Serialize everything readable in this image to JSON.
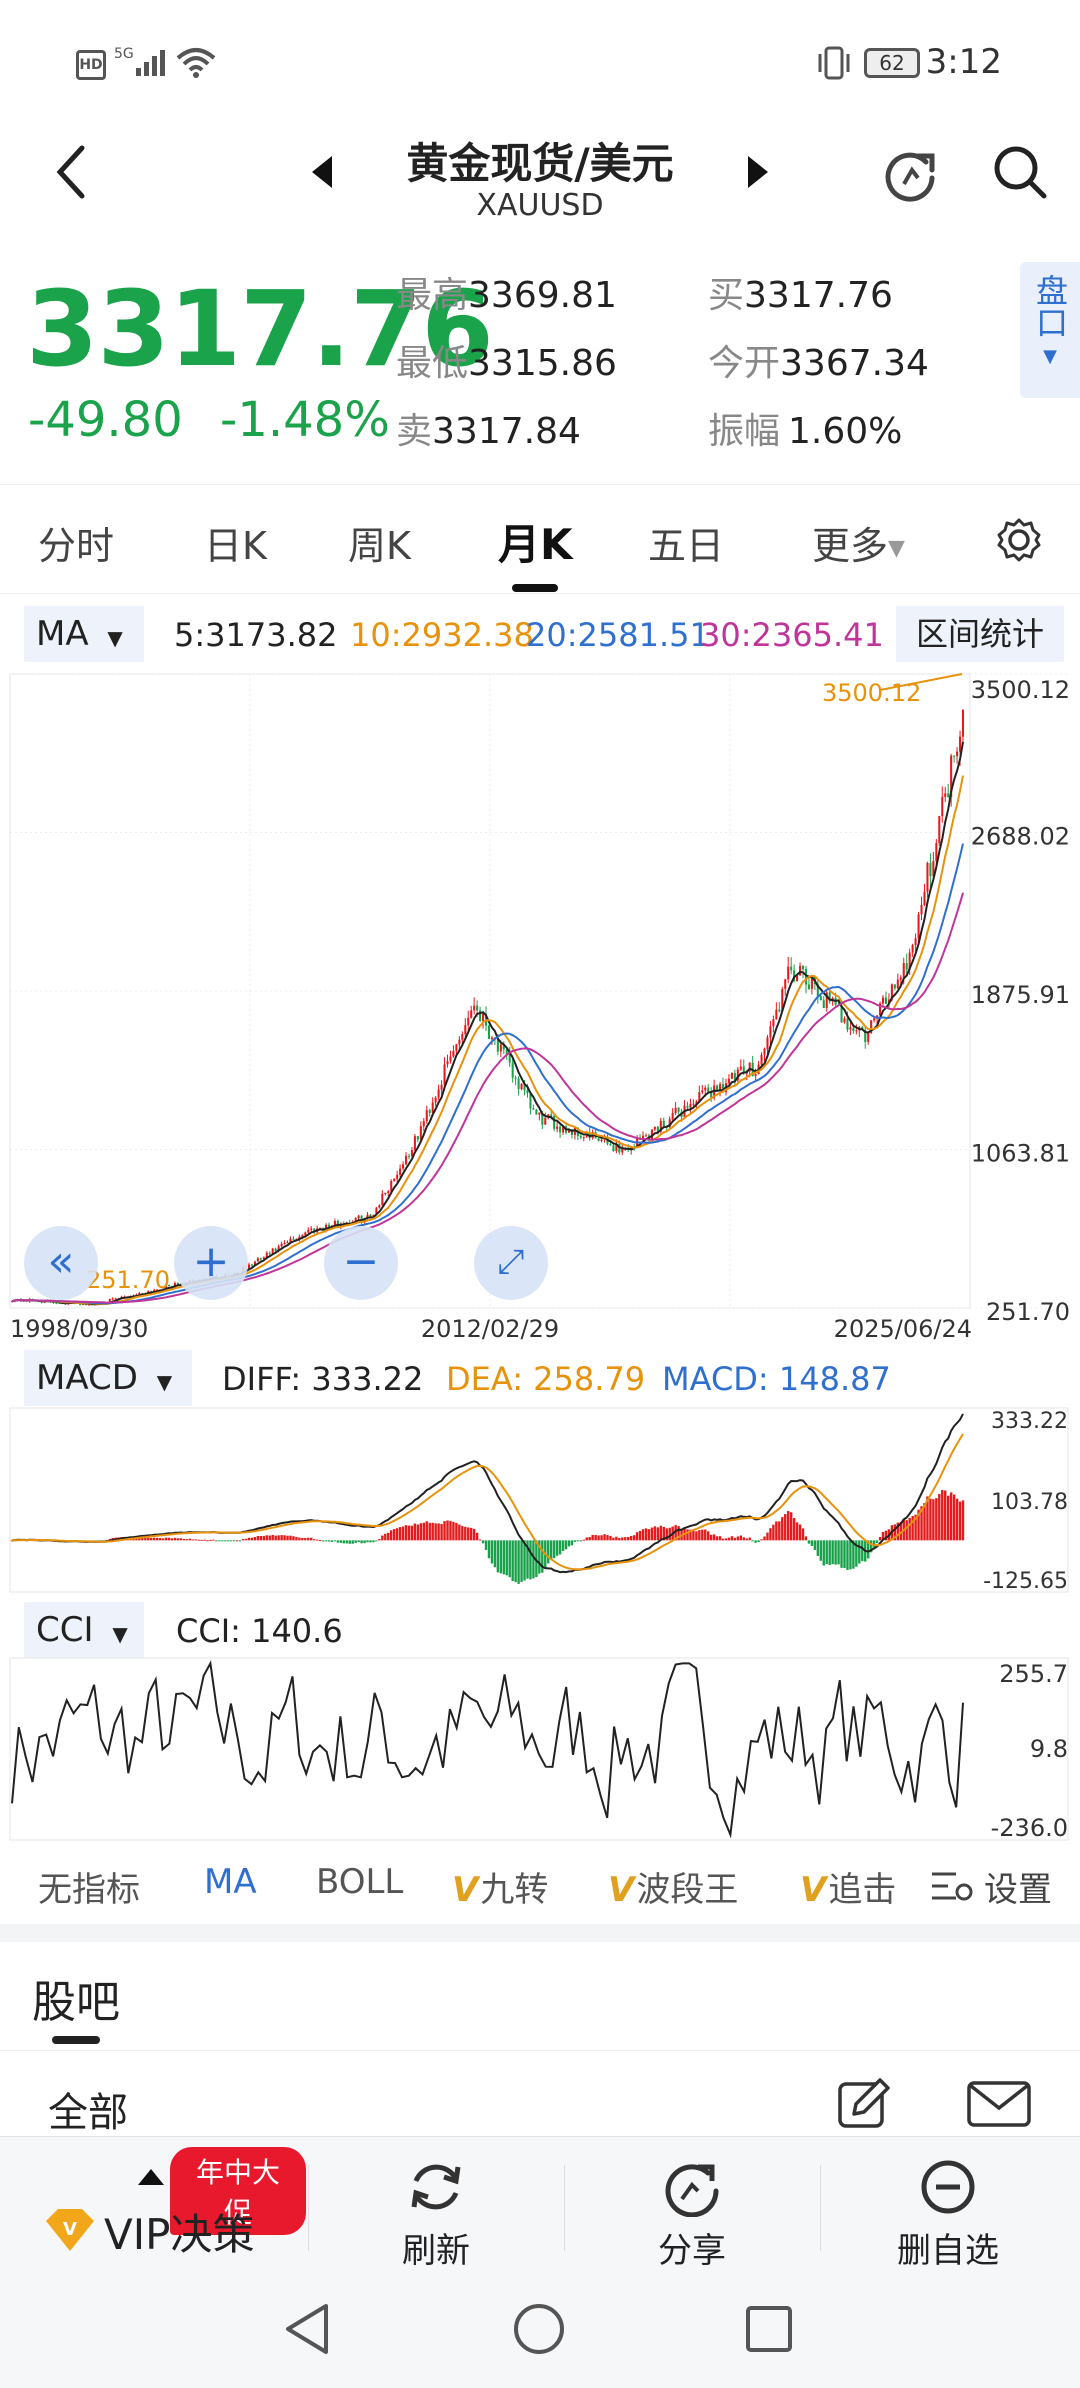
{
  "status_bar": {
    "time": "3:12",
    "battery": "62",
    "hd": "HD",
    "network": "5G"
  },
  "header": {
    "title": "黄金现货/美元",
    "code": "XAUUSD"
  },
  "quote": {
    "price": "3317.76",
    "change": "-49.80",
    "change_pct": "-1.48%",
    "high_label": "最高",
    "high": "3369.81",
    "low_label": "最低",
    "low": "3315.86",
    "sell_label": "卖",
    "sell": "3317.84",
    "buy_label": "买",
    "buy": "3317.76",
    "open_label": "今开",
    "open": "3367.34",
    "amp_label": "振幅",
    "amp": "1.60%",
    "pankou": "盘口",
    "price_color": "#1aa34a"
  },
  "tabs": [
    {
      "label": "分时"
    },
    {
      "label": "日K"
    },
    {
      "label": "周K"
    },
    {
      "label": "月K",
      "active": true
    },
    {
      "label": "五日"
    },
    {
      "label": "更多"
    }
  ],
  "ma_row": {
    "selector": "MA",
    "ma5": "5:3173.82",
    "ma10": "10:2932.38",
    "ma20": "20:2581.51",
    "ma30": "30:2365.41",
    "range_stats": "区间统计",
    "colors": {
      "ma5": "#222222",
      "ma10": "#e8920c",
      "ma20": "#2f6fd0",
      "ma30": "#c0359a"
    }
  },
  "macd_row": {
    "selector": "MACD",
    "diff": "DIFF: 333.22",
    "dea": "DEA: 258.79",
    "macd": "MACD: 148.87"
  },
  "cci_row": {
    "selector": "CCI",
    "value": "CCI: 140.6"
  },
  "indicators": [
    {
      "label": "无指标",
      "v": false
    },
    {
      "label": "MA",
      "v": false,
      "active": true
    },
    {
      "label": "BOLL",
      "v": false
    },
    {
      "label": "九转",
      "v": true
    },
    {
      "label": "波段王",
      "v": true
    },
    {
      "label": "追击",
      "v": true
    }
  ],
  "indicator_settings": "设置",
  "guba": {
    "title": "股吧",
    "filter": "全部"
  },
  "actions": {
    "promo": "年中大促",
    "vip": "VIP决策",
    "refresh": "刷新",
    "share": "分享",
    "remove": "删自选"
  },
  "chart_data": [
    {
      "type": "candlestick",
      "title": "月K",
      "y_ticks": [
        "3500.12",
        "2688.02",
        "1875.91",
        "1063.81",
        "251.70"
      ],
      "ylim": [
        251.7,
        3500.12
      ],
      "x_ticks": [
        "1998/09/30",
        "2012/02/29",
        "2025/06/24"
      ],
      "annotations": {
        "max": "3500.12",
        "min": "251.70"
      },
      "approx_close_series": {
        "dates": [
          "1998/09/30",
          "2001/01",
          "2003/01",
          "2005/01",
          "2007/01",
          "2008/10",
          "2010/01",
          "2011/09",
          "2013/06",
          "2015/12",
          "2018/01",
          "2019/09",
          "2020/08",
          "2022/09",
          "2023/12",
          "2024/10",
          "2025/06/24"
        ],
        "values": [
          295,
          270,
          360,
          430,
          650,
          720,
          1100,
          1820,
          1230,
          1060,
          1330,
          1500,
          1990,
          1640,
          2060,
          2740,
          3317.76
        ]
      }
    },
    {
      "type": "line",
      "title": "MACD",
      "y_ticks": [
        "333.22",
        "103.78",
        "-125.65"
      ],
      "ylim": [
        -125.65,
        333.22
      ],
      "series": [
        {
          "name": "DIFF",
          "last": 333.22
        },
        {
          "name": "DEA",
          "last": 258.79
        },
        {
          "name": "MACD",
          "last": 148.87
        }
      ]
    },
    {
      "type": "line",
      "title": "CCI",
      "y_ticks": [
        "255.7",
        "9.8",
        "-236.0"
      ],
      "ylim": [
        -236.0,
        255.7
      ],
      "series": [
        {
          "name": "CCI",
          "last": 140.6
        }
      ]
    }
  ]
}
